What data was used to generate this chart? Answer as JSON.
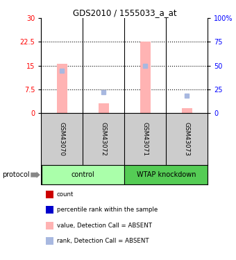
{
  "title": "GDS2010 / 1555033_a_at",
  "samples": [
    "GSM43070",
    "GSM43072",
    "GSM43071",
    "GSM43073"
  ],
  "bar_values": [
    15.5,
    3.2,
    22.5,
    1.5
  ],
  "rank_values": [
    13.5,
    6.5,
    15.0,
    5.5
  ],
  "bar_color": "#ffb3b3",
  "rank_color": "#a8b8e0",
  "ylim_left": [
    0,
    30
  ],
  "ylim_right": [
    0,
    100
  ],
  "yticks_left": [
    0,
    7.5,
    15,
    22.5,
    30
  ],
  "ytick_labels_left": [
    "0",
    "7.5",
    "15",
    "22.5",
    "30"
  ],
  "yticks_right": [
    0,
    25,
    50,
    75,
    100
  ],
  "ytick_labels_right": [
    "0",
    "25",
    "50",
    "75",
    "100%"
  ],
  "control_color": "#aaffaa",
  "knockdown_color": "#55cc55",
  "sample_bg": "#cccccc",
  "grid_yticks": [
    7.5,
    15,
    22.5
  ],
  "legend_items": [
    {
      "label": "count",
      "color": "#cc0000"
    },
    {
      "label": "percentile rank within the sample",
      "color": "#0000cc"
    },
    {
      "label": "value, Detection Call = ABSENT",
      "color": "#ffb3b3"
    },
    {
      "label": "rank, Detection Call = ABSENT",
      "color": "#a8b8e0"
    }
  ]
}
